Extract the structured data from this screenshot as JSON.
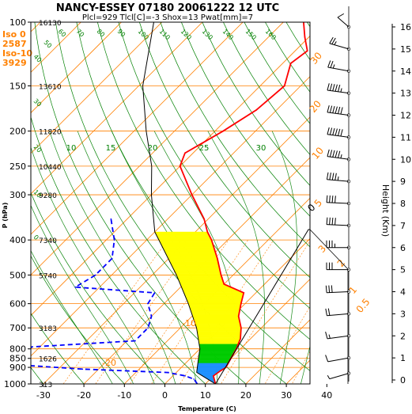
{
  "header": {
    "title": "NANCY-ESSEY 07180 20061222 12 UTC",
    "subtitle": "Plcl=929 Tlcl[C]=-3 Shox=13 Pwat[mm]=7"
  },
  "side_info": {
    "lines": [
      "Iso 0",
      "2587",
      "Iso-10",
      "3929"
    ],
    "color": "#ff8000"
  },
  "colors": {
    "isotherm": "#ff8000",
    "dry_adiabat": "#008000",
    "moist_adiabat": "#008000",
    "mixing_ratio": "#ff8000",
    "temperature": "#ff0000",
    "dewpoint": "#0000ff",
    "parcel": "#000000",
    "cape_fill": "#ffff00",
    "cin_fill": "#ff0000",
    "green_fill": "#00cc00",
    "blue_fill": "#1e90ff"
  },
  "chart_data": {
    "type": "skew-t",
    "xlabel": "Temperature (C)",
    "ylabel": "P (hPa)",
    "right_axis_label": "Height (Km)",
    "x_ticks": [
      -30,
      -20,
      -10,
      0,
      10,
      20,
      30,
      40
    ],
    "pressure_ticks": [
      100,
      150,
      200,
      250,
      300,
      400,
      500,
      600,
      700,
      800,
      850,
      900,
      1000
    ],
    "height_ticks": [
      0,
      1,
      2,
      3,
      4,
      5,
      6,
      7,
      8,
      9,
      10,
      11,
      12,
      13,
      14,
      15,
      16
    ],
    "geopotential_labels": [
      {
        "p": 100,
        "label": "16130"
      },
      {
        "p": 150,
        "label": "13610"
      },
      {
        "p": 200,
        "label": "11820"
      },
      {
        "p": 250,
        "label": "10440"
      },
      {
        "p": 300,
        "label": "9280"
      },
      {
        "p": 400,
        "label": "7340"
      },
      {
        "p": 500,
        "label": "5740"
      },
      {
        "p": 700,
        "label": "3183"
      },
      {
        "p": 850,
        "label": "1626"
      },
      {
        "p": 1000,
        "label": "313"
      }
    ],
    "isotherm_labels": [
      "-30",
      "-20",
      "-10",
      "0",
      "10",
      "20",
      "30",
      "40"
    ],
    "dry_adiabat_labels": [
      "160",
      "150",
      "140",
      "130",
      "120",
      "110",
      "100",
      "90",
      "80",
      "70",
      "60",
      "50",
      "40",
      "30",
      "20",
      "10",
      "0"
    ],
    "mixing_ratio_labels": [
      "30",
      "20",
      "10",
      "5",
      "3",
      "2",
      "1",
      "0.5"
    ],
    "moist_adiabat_labels": [
      "10",
      "15",
      "20",
      "25",
      "30"
    ],
    "temperature_profile": [
      {
        "p": 1000,
        "t": 12.5
      },
      {
        "p": 970,
        "t": 11
      },
      {
        "p": 950,
        "t": 10
      },
      {
        "p": 920,
        "t": 10.5
      },
      {
        "p": 900,
        "t": 11
      },
      {
        "p": 850,
        "t": 10
      },
      {
        "p": 800,
        "t": 9
      },
      {
        "p": 750,
        "t": 7.5
      },
      {
        "p": 700,
        "t": 5
      },
      {
        "p": 650,
        "t": 1.5
      },
      {
        "p": 600,
        "t": -1
      },
      {
        "p": 560,
        "t": -3
      },
      {
        "p": 530,
        "t": -10
      },
      {
        "p": 500,
        "t": -13
      },
      {
        "p": 450,
        "t": -18
      },
      {
        "p": 400,
        "t": -24
      },
      {
        "p": 380,
        "t": -27
      },
      {
        "p": 350,
        "t": -31
      },
      {
        "p": 300,
        "t": -40
      },
      {
        "p": 250,
        "t": -50
      },
      {
        "p": 230,
        "t": -52
      },
      {
        "p": 200,
        "t": -48
      },
      {
        "p": 175,
        "t": -45
      },
      {
        "p": 150,
        "t": -44
      },
      {
        "p": 130,
        "t": -48
      },
      {
        "p": 120,
        "t": -47
      },
      {
        "p": 110,
        "t": -51
      },
      {
        "p": 100,
        "t": -55
      }
    ],
    "dewpoint_profile": [
      {
        "p": 1000,
        "t": 8
      },
      {
        "p": 970,
        "t": 6
      },
      {
        "p": 950,
        "t": 3
      },
      {
        "p": 930,
        "t": -2
      },
      {
        "p": 910,
        "t": -24
      },
      {
        "p": 880,
        "t": -45
      },
      {
        "p": 850,
        "t": -45
      },
      {
        "p": 820,
        "t": -42
      },
      {
        "p": 790,
        "t": -42
      },
      {
        "p": 760,
        "t": -18
      },
      {
        "p": 700,
        "t": -18
      },
      {
        "p": 650,
        "t": -20
      },
      {
        "p": 600,
        "t": -24
      },
      {
        "p": 560,
        "t": -25
      },
      {
        "p": 540,
        "t": -46
      },
      {
        "p": 500,
        "t": -44
      },
      {
        "p": 450,
        "t": -44
      },
      {
        "p": 400,
        "t": -48
      },
      {
        "p": 350,
        "t": -54
      }
    ],
    "parcel_profile": [
      {
        "p": 1000,
        "t": 12.5
      },
      {
        "p": 929,
        "t": 5
      },
      {
        "p": 850,
        "t": 2
      },
      {
        "p": 800,
        "t": 0
      },
      {
        "p": 700,
        "t": -6
      },
      {
        "p": 600,
        "t": -14
      },
      {
        "p": 500,
        "t": -24
      },
      {
        "p": 400,
        "t": -37
      },
      {
        "p": 380,
        "t": -40
      },
      {
        "p": 300,
        "t": -50
      },
      {
        "p": 250,
        "t": -57
      },
      {
        "p": 200,
        "t": -67
      },
      {
        "p": 150,
        "t": -79
      },
      {
        "p": 100,
        "t": -92
      }
    ],
    "wind_barbs": [
      {
        "km": 16,
        "dir": 330,
        "kt": 10
      },
      {
        "km": 15,
        "dir": 300,
        "kt": 25
      },
      {
        "km": 14,
        "dir": 290,
        "kt": 25
      },
      {
        "km": 13,
        "dir": 285,
        "kt": 55
      },
      {
        "km": 12,
        "dir": 285,
        "kt": 60
      },
      {
        "km": 11,
        "dir": 285,
        "kt": 60
      },
      {
        "km": 10,
        "dir": 285,
        "kt": 55
      },
      {
        "km": 9,
        "dir": 280,
        "kt": 45
      },
      {
        "km": 8,
        "dir": 275,
        "kt": 40
      },
      {
        "km": 7,
        "dir": 275,
        "kt": 40
      },
      {
        "km": 6,
        "dir": 270,
        "kt": 35
      },
      {
        "km": 5,
        "dir": 270,
        "kt": 30
      },
      {
        "km": 4,
        "dir": 265,
        "kt": 30
      },
      {
        "km": 3,
        "dir": 260,
        "kt": 20
      },
      {
        "km": 2,
        "dir": 255,
        "kt": 15
      },
      {
        "km": 1,
        "dir": 250,
        "kt": 10
      },
      {
        "km": 0.3,
        "dir": 240,
        "kt": 5
      }
    ]
  }
}
